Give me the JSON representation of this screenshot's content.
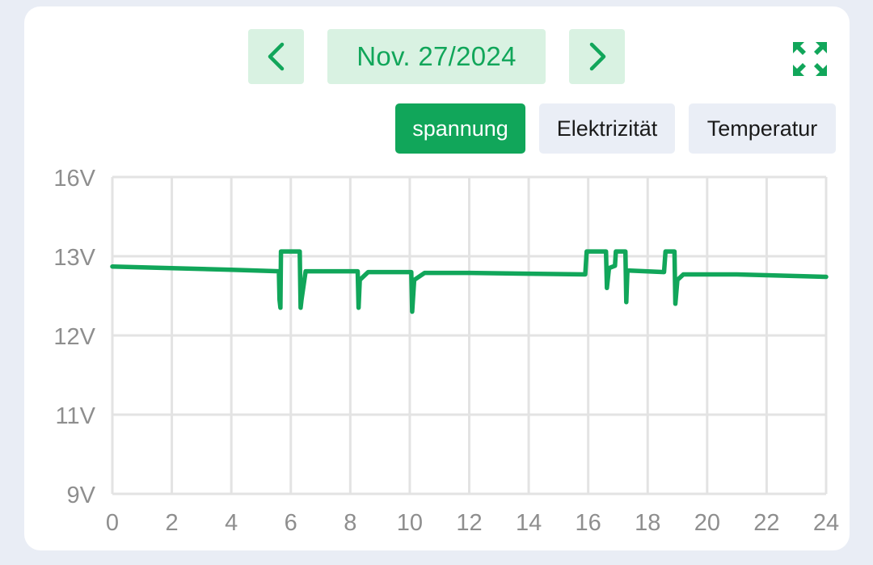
{
  "header": {
    "date": "Nov. 27/2024"
  },
  "icons": {
    "prev": "chevron-left-icon",
    "next": "chevron-right-icon",
    "fullscreen": "expand-icon"
  },
  "colors": {
    "accent": "#11a65a",
    "accent_light": "#d9f2e2",
    "tab_inactive": "#eaeef6",
    "grid": "#e3e3e3",
    "tick_text": "#8e8e8e",
    "background": "#e9edf5"
  },
  "tabs": [
    {
      "label": "spannung",
      "active": true
    },
    {
      "label": "Elektrizität",
      "active": false
    },
    {
      "label": "Temperatur",
      "active": false
    }
  ],
  "chart_data": {
    "type": "line",
    "title": "",
    "xlabel": "",
    "ylabel": "",
    "x_ticks": [
      "0",
      "2",
      "4",
      "6",
      "8",
      "10",
      "12",
      "14",
      "16",
      "18",
      "20",
      "22",
      "24"
    ],
    "y_ticks": [
      {
        "value": 16,
        "label": "16V"
      },
      {
        "value": 13,
        "label": "13V"
      },
      {
        "value": 12,
        "label": "12V"
      },
      {
        "value": 11,
        "label": "11V"
      },
      {
        "value": 9,
        "label": "9V"
      }
    ],
    "xlim": [
      0,
      24
    ],
    "grid": true,
    "series": [
      {
        "color": "#11a65a",
        "points": [
          [
            0,
            12.87
          ],
          [
            2,
            12.85
          ],
          [
            4,
            12.83
          ],
          [
            5.6,
            12.81
          ],
          [
            5.62,
            12.45
          ],
          [
            5.65,
            12.35
          ],
          [
            5.67,
            13.18
          ],
          [
            6.3,
            13.18
          ],
          [
            6.33,
            12.35
          ],
          [
            6.36,
            12.45
          ],
          [
            6.5,
            12.81
          ],
          [
            8.25,
            12.81
          ],
          [
            8.28,
            12.35
          ],
          [
            8.32,
            12.7
          ],
          [
            8.6,
            12.8
          ],
          [
            10.05,
            12.8
          ],
          [
            10.08,
            12.3
          ],
          [
            10.15,
            12.7
          ],
          [
            10.5,
            12.79
          ],
          [
            12,
            12.79
          ],
          [
            14,
            12.78
          ],
          [
            15.9,
            12.77
          ],
          [
            15.95,
            13.18
          ],
          [
            16.6,
            13.18
          ],
          [
            16.63,
            12.6
          ],
          [
            16.7,
            12.85
          ],
          [
            16.9,
            12.88
          ],
          [
            16.93,
            13.18
          ],
          [
            17.25,
            13.18
          ],
          [
            17.28,
            12.42
          ],
          [
            17.32,
            12.82
          ],
          [
            18.55,
            12.8
          ],
          [
            18.6,
            13.18
          ],
          [
            18.9,
            13.18
          ],
          [
            18.93,
            12.4
          ],
          [
            19.0,
            12.7
          ],
          [
            19.2,
            12.77
          ],
          [
            21,
            12.77
          ],
          [
            23,
            12.75
          ],
          [
            24,
            12.74
          ]
        ]
      }
    ]
  }
}
